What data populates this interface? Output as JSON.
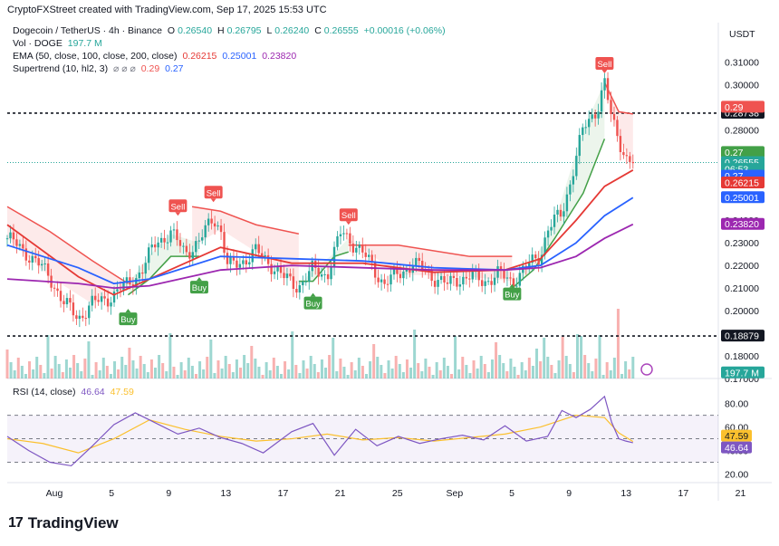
{
  "header": {
    "credit": "CryptoFXStreet created with TradingView.com, Sep 17, 2025 15:53 UTC"
  },
  "legend": {
    "symbol": "Dogecoin / TetherUS · 4h · Binance",
    "o_label": "O",
    "o": "0.26540",
    "h_label": "H",
    "h": "0.26795",
    "l_label": "L",
    "l": "0.26240",
    "c_label": "C",
    "c": "0.26555",
    "change": "+0.00016 (+0.06%)",
    "vol_label": "Vol · DOGE",
    "vol": "197.7 M",
    "ema_label": "EMA (50, close, 100, close, 200, close)",
    "ema50": "0.26215",
    "ema100": "0.25001",
    "ema200": "0.23820",
    "st_label": "Supertrend (10, hl2, 3)",
    "st_sym": "⌀ ⌀ ⌀",
    "st_up": "0.29",
    "st_dn": "0.27",
    "rsi_label": "RSI (14, close)",
    "rsi": "46.64",
    "rsi_ma": "47.59"
  },
  "currency": "USDT",
  "brand": "TradingView",
  "colors": {
    "up": "#26a69a",
    "down": "#ef5350",
    "ema50": "#e53935",
    "ema100": "#2962ff",
    "ema200": "#9c27b0",
    "st_up": "#43a047",
    "st_dn": "#ef5350",
    "rsi": "#7e57c2",
    "rsi_ma": "#fbc02d"
  },
  "chart_data": [
    {
      "type": "candlestick",
      "title": "Dogecoin / TetherUS · 4h · Binance",
      "ylim": [
        0.17,
        0.315
      ],
      "price_ticks": [
        "0.31000",
        "0.30000",
        "0.29000",
        "0.28000",
        "0.27000",
        "0.26000",
        "0.25000",
        "0.24000",
        "0.23000",
        "0.22000",
        "0.21000",
        "0.20000",
        "0.19000",
        "0.18000",
        "0.17000"
      ],
      "x_ticks": [
        "Aug",
        "5",
        "9",
        "13",
        "17",
        "21",
        "25",
        "Sep",
        "5",
        "9",
        "13",
        "17",
        "21"
      ],
      "price_points": {
        "x": [
          0,
          0.03,
          0.06,
          0.08,
          0.1,
          0.12,
          0.15,
          0.17,
          0.19,
          0.21,
          0.23,
          0.25,
          0.27,
          0.29,
          0.3,
          0.31,
          0.33,
          0.35,
          0.37,
          0.39,
          0.41,
          0.43,
          0.45,
          0.47,
          0.49,
          0.51,
          0.53,
          0.55,
          0.57,
          0.6,
          0.62,
          0.63,
          0.65,
          0.67,
          0.69,
          0.71,
          0.73,
          0.75,
          0.76,
          0.78,
          0.79,
          0.8,
          0.81,
          0.83,
          0.84,
          0.85,
          0.86,
          0.87,
          0.88
        ],
        "y": [
          0.232,
          0.225,
          0.215,
          0.203,
          0.197,
          0.203,
          0.207,
          0.212,
          0.218,
          0.231,
          0.234,
          0.226,
          0.23,
          0.242,
          0.236,
          0.219,
          0.222,
          0.226,
          0.221,
          0.214,
          0.211,
          0.218,
          0.216,
          0.235,
          0.229,
          0.221,
          0.212,
          0.216,
          0.221,
          0.215,
          0.211,
          0.214,
          0.215,
          0.213,
          0.216,
          0.213,
          0.219,
          0.225,
          0.236,
          0.243,
          0.255,
          0.268,
          0.28,
          0.29,
          0.301,
          0.284,
          0.276,
          0.268,
          0.2656
        ]
      },
      "ema_lines": [
        {
          "name": "EMA 50",
          "x": [
            0,
            0.1,
            0.15,
            0.2,
            0.3,
            0.4,
            0.5,
            0.6,
            0.7,
            0.75,
            0.8,
            0.84,
            0.88
          ],
          "y": [
            0.238,
            0.215,
            0.207,
            0.214,
            0.228,
            0.221,
            0.221,
            0.217,
            0.218,
            0.223,
            0.24,
            0.255,
            0.2622
          ]
        },
        {
          "name": "EMA 100",
          "x": [
            0,
            0.1,
            0.15,
            0.2,
            0.3,
            0.4,
            0.5,
            0.6,
            0.7,
            0.75,
            0.8,
            0.84,
            0.88
          ],
          "y": [
            0.229,
            0.219,
            0.212,
            0.214,
            0.224,
            0.223,
            0.222,
            0.219,
            0.218,
            0.22,
            0.23,
            0.242,
            0.25
          ]
        },
        {
          "name": "EMA 200",
          "x": [
            0,
            0.1,
            0.15,
            0.2,
            0.3,
            0.4,
            0.5,
            0.6,
            0.7,
            0.75,
            0.8,
            0.84,
            0.88
          ],
          "y": [
            0.214,
            0.212,
            0.21,
            0.211,
            0.218,
            0.22,
            0.219,
            0.218,
            0.218,
            0.219,
            0.224,
            0.232,
            0.2382
          ]
        }
      ],
      "supertrend_segments": [
        {
          "trend": "down",
          "x": [
            0,
            0.06,
            0.12,
            0.17
          ],
          "y": [
            0.246,
            0.235,
            0.222,
            0.212
          ]
        },
        {
          "trend": "up",
          "x": [
            0.17,
            0.2,
            0.23,
            0.27
          ],
          "y": [
            0.207,
            0.214,
            0.224,
            0.224
          ]
        },
        {
          "trend": "down",
          "x": [
            0.26,
            0.3,
            0.35,
            0.41
          ],
          "y": [
            0.246,
            0.244,
            0.238,
            0.234
          ]
        },
        {
          "trend": "up",
          "x": [
            0.41,
            0.43,
            0.46,
            0.48
          ],
          "y": [
            0.213,
            0.213,
            0.224,
            0.226
          ]
        },
        {
          "trend": "down",
          "x": [
            0.48,
            0.55,
            0.65,
            0.71
          ],
          "y": [
            0.229,
            0.229,
            0.224,
            0.224
          ]
        },
        {
          "trend": "up",
          "x": [
            0.71,
            0.74,
            0.77,
            0.81,
            0.84
          ],
          "y": [
            0.21,
            0.218,
            0.232,
            0.252,
            0.276
          ]
        },
        {
          "trend": "down",
          "x": [
            0.84,
            0.86,
            0.88
          ],
          "y": [
            0.301,
            0.288,
            0.287
          ]
        }
      ],
      "signals": [
        {
          "label": "Sell",
          "x": 0.24,
          "y": 0.246
        },
        {
          "label": "Sell",
          "x": 0.29,
          "y": 0.252
        },
        {
          "label": "Buy",
          "x": 0.17,
          "y": 0.196
        },
        {
          "label": "Buy",
          "x": 0.27,
          "y": 0.21
        },
        {
          "label": "Buy",
          "x": 0.43,
          "y": 0.203
        },
        {
          "label": "Sell",
          "x": 0.48,
          "y": 0.242
        },
        {
          "label": "Buy",
          "x": 0.71,
          "y": 0.207
        },
        {
          "label": "Sell",
          "x": 0.84,
          "y": 0.309
        }
      ],
      "horizontal_levels": [
        0.28738,
        0.18879
      ],
      "current_price_line": 0.26555,
      "price_tags": [
        {
          "label": "0.28738",
          "value": 0.28738,
          "bg": "#131722",
          "fg": "#ffffff"
        },
        {
          "label": "0.29",
          "value": 0.29,
          "bg": "#ef5350",
          "fg": "#ffffff"
        },
        {
          "label": "0.27",
          "value": 0.27,
          "bg": "#43a047",
          "fg": "#ffffff"
        },
        {
          "label": "0.26555",
          "value": 0.26555,
          "bg": "#26a69a",
          "fg": "#ffffff"
        },
        {
          "label": "06:53",
          "value": 0.2625,
          "bg": "#26a69a",
          "fg": "#ffffff"
        },
        {
          "label": "0.27",
          "value": 0.2595,
          "bg": "#2962ff",
          "fg": "#ffffff"
        },
        {
          "label": "0.26215",
          "value": 0.2565,
          "bg": "#e53935",
          "fg": "#ffffff"
        },
        {
          "label": "0.25001",
          "value": 0.25001,
          "bg": "#2962ff",
          "fg": "#ffffff"
        },
        {
          "label": "0.23820",
          "value": 0.2382,
          "bg": "#9c27b0",
          "fg": "#ffffff"
        },
        {
          "label": "0.18879",
          "value": 0.18879,
          "bg": "#131722",
          "fg": "#ffffff"
        },
        {
          "label": "197.7 M",
          "value": 0.1725,
          "bg": "#26a69a",
          "fg": "#ffffff"
        }
      ]
    },
    {
      "type": "line",
      "title": "RSI (14, close)",
      "ylim": [
        15,
        92
      ],
      "ticks": [
        "80.00",
        "60.00",
        "40.00",
        "20.00"
      ],
      "bands": [
        70,
        50,
        30
      ],
      "series": [
        {
          "name": "RSI",
          "x": [
            0,
            0.03,
            0.06,
            0.09,
            0.12,
            0.15,
            0.18,
            0.21,
            0.24,
            0.27,
            0.3,
            0.33,
            0.36,
            0.4,
            0.43,
            0.46,
            0.49,
            0.52,
            0.55,
            0.58,
            0.61,
            0.64,
            0.67,
            0.7,
            0.73,
            0.76,
            0.78,
            0.8,
            0.82,
            0.84,
            0.85,
            0.86,
            0.87,
            0.88
          ],
          "y": [
            52,
            40,
            30,
            27,
            44,
            62,
            72,
            63,
            54,
            59,
            51,
            46,
            38,
            56,
            63,
            36,
            58,
            44,
            52,
            46,
            50,
            53,
            49,
            61,
            48,
            52,
            74,
            68,
            75,
            86,
            64,
            50,
            48,
            46.6
          ]
        },
        {
          "name": "RSI MA",
          "x": [
            0,
            0.05,
            0.1,
            0.15,
            0.2,
            0.25,
            0.3,
            0.35,
            0.4,
            0.45,
            0.5,
            0.55,
            0.6,
            0.65,
            0.7,
            0.75,
            0.8,
            0.84,
            0.86,
            0.88
          ],
          "y": [
            50,
            46,
            38,
            50,
            66,
            58,
            52,
            48,
            50,
            54,
            49,
            51,
            48,
            51,
            54,
            60,
            70,
            68,
            55,
            47.6
          ]
        }
      ]
    }
  ]
}
